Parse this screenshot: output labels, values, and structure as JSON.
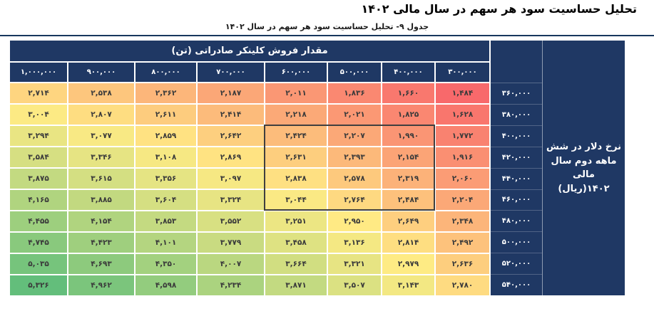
{
  "page": {
    "title": "تحلیل حساسیت سود هر سهم در سال مالی ۱۴۰۲",
    "subtitle": "جدول ۹- تحلیل حساسیت سود هر سهم در سال ۱۴۰۲"
  },
  "table": {
    "top_header": "مقدار فروش کلینکر صادراتی (تن)",
    "col_headers": [
      "۱,۰۰۰,۰۰۰",
      "۹۰۰,۰۰۰",
      "۸۰۰,۰۰۰",
      "۷۰۰,۰۰۰",
      "۶۰۰,۰۰۰",
      "۵۰۰,۰۰۰",
      "۴۰۰,۰۰۰",
      "۳۰۰,۰۰۰"
    ],
    "row_headers": [
      "۳۶۰,۰۰۰",
      "۳۸۰,۰۰۰",
      "۴۰۰,۰۰۰",
      "۴۲۰,۰۰۰",
      "۴۴۰,۰۰۰",
      "۴۶۰,۰۰۰",
      "۴۸۰,۰۰۰",
      "۵۰۰,۰۰۰",
      "۵۲۰,۰۰۰",
      "۵۴۰,۰۰۰"
    ],
    "right_label_lines": [
      "نرخ دلار در شش",
      "ماهه دوم سال مالی",
      "۱۴۰۲(ریال)"
    ],
    "values": [
      [
        2714,
        2538,
        2362,
        2187,
        2011,
        1836,
        1660,
        1484
      ],
      [
        3004,
        2807,
        2611,
        2414,
        2218,
        2021,
        1825,
        1628
      ],
      [
        3294,
        3077,
        2859,
        2642,
        2424,
        2207,
        1990,
        1772
      ],
      [
        3584,
        3346,
        3108,
        2869,
        2631,
        2393,
        2154,
        1916
      ],
      [
        3875,
        3615,
        3356,
        3097,
        2838,
        2578,
        2319,
        2060
      ],
      [
        4165,
        3885,
        3604,
        3324,
        3044,
        2764,
        2484,
        2204
      ],
      [
        4455,
        4154,
        3853,
        3552,
        3251,
        2950,
        2649,
        2348
      ],
      [
        4745,
        4423,
        4101,
        3779,
        3458,
        3136,
        2814,
        2492
      ],
      [
        5035,
        4693,
        4350,
        4007,
        3664,
        3321,
        2979,
        2636
      ],
      [
        5326,
        4962,
        4598,
        4234,
        3871,
        3507,
        3143,
        2780
      ]
    ],
    "highlight_box": {
      "col_start": 4,
      "col_end": 6,
      "row_start": 2,
      "row_end": 5
    },
    "colors": {
      "header_bg": "#1F3864",
      "grid_gap": "#FFFFFF",
      "scale_min": "#F8696B",
      "scale_mid": "#FFEB84",
      "scale_max": "#63BE7B",
      "box_border": "#3F3F3F",
      "cell_text": "#3B3B3B",
      "divider": "#17365D"
    }
  },
  "chart_data": {
    "type": "heatmap",
    "title": "تحلیل حساسیت سود هر سهم در سال مالی ۱۴۰۲",
    "x_label": "مقدار فروش کلینکر صادراتی (تن)",
    "y_label": "نرخ دلار در شش ماهه دوم سال مالی ۱۴۰۲(ریال)",
    "x_categories": [
      1000000,
      900000,
      800000,
      700000,
      600000,
      500000,
      400000,
      300000
    ],
    "y_categories": [
      360000,
      380000,
      400000,
      420000,
      440000,
      460000,
      480000,
      500000,
      520000,
      540000
    ],
    "values": [
      [
        2714,
        2538,
        2362,
        2187,
        2011,
        1836,
        1660,
        1484
      ],
      [
        3004,
        2807,
        2611,
        2414,
        2218,
        2021,
        1825,
        1628
      ],
      [
        3294,
        3077,
        2859,
        2642,
        2424,
        2207,
        1990,
        1772
      ],
      [
        3584,
        3346,
        3108,
        2869,
        2631,
        2393,
        2154,
        1916
      ],
      [
        3875,
        3615,
        3356,
        3097,
        2838,
        2578,
        2319,
        2060
      ],
      [
        4165,
        3885,
        3604,
        3324,
        3044,
        2764,
        2484,
        2204
      ],
      [
        4455,
        4154,
        3853,
        3552,
        3251,
        2950,
        2649,
        2348
      ],
      [
        4745,
        4423,
        4101,
        3779,
        3458,
        3136,
        2814,
        2492
      ],
      [
        5035,
        4693,
        4350,
        4007,
        3664,
        3321,
        2979,
        2636
      ],
      [
        5326,
        4962,
        4598,
        4234,
        3871,
        3507,
        3143,
        2780
      ]
    ],
    "color_scale": {
      "min": "#F8696B",
      "mid": "#FFEB84",
      "max": "#63BE7B"
    },
    "legend": "none",
    "value_range": [
      1484,
      5326
    ]
  }
}
